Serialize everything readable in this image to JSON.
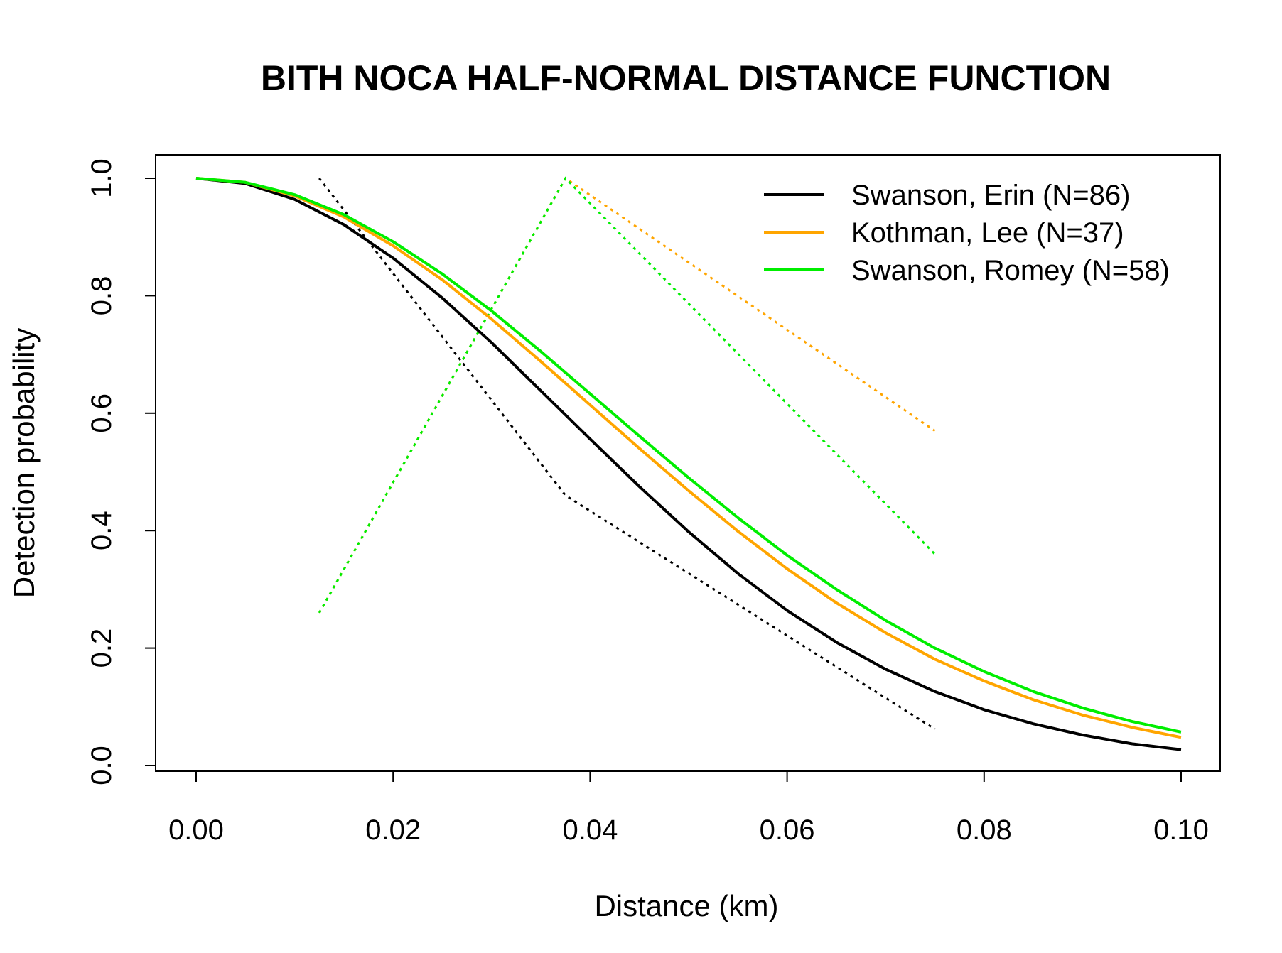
{
  "chart_data": {
    "type": "line",
    "title": "BITH NOCA HALF-NORMAL DISTANCE FUNCTION",
    "xlabel": "Distance (km)",
    "ylabel": "Detection probability",
    "xlim": [
      0,
      0.1
    ],
    "ylim": [
      0,
      1
    ],
    "xticks": [
      0,
      0.02,
      0.04,
      0.06,
      0.08,
      0.1
    ],
    "xtick_labels": [
      "0.00",
      "0.02",
      "0.04",
      "0.06",
      "0.08",
      "0.10"
    ],
    "yticks": [
      0,
      0.2,
      0.4,
      0.6,
      0.8,
      1.0
    ],
    "ytick_labels": [
      "0.0",
      "0.2",
      "0.4",
      "0.6",
      "0.8",
      "1.0"
    ],
    "legend_position": "top-right",
    "grid": false,
    "series": [
      {
        "name": "Swanson, Erin (N=86)",
        "color": "#000000",
        "style": "solid",
        "x": [
          0,
          0.005,
          0.01,
          0.015,
          0.02,
          0.025,
          0.03,
          0.035,
          0.04,
          0.045,
          0.05,
          0.055,
          0.06,
          0.065,
          0.07,
          0.075,
          0.08,
          0.085,
          0.09,
          0.095,
          0.1
        ],
        "y": [
          1.0,
          0.991,
          0.964,
          0.921,
          0.864,
          0.796,
          0.72,
          0.638,
          0.556,
          0.475,
          0.398,
          0.327,
          0.264,
          0.21,
          0.164,
          0.126,
          0.095,
          0.071,
          0.052,
          0.037,
          0.027
        ]
      },
      {
        "name": "Kothman, Lee (N=37)",
        "color": "#FFA500",
        "style": "solid",
        "x": [
          0,
          0.005,
          0.01,
          0.015,
          0.02,
          0.025,
          0.03,
          0.035,
          0.04,
          0.045,
          0.05,
          0.055,
          0.06,
          0.065,
          0.07,
          0.075,
          0.08,
          0.085,
          0.09,
          0.095,
          0.1
        ],
        "y": [
          1.0,
          0.993,
          0.97,
          0.934,
          0.885,
          0.827,
          0.76,
          0.688,
          0.614,
          0.54,
          0.468,
          0.399,
          0.335,
          0.277,
          0.226,
          0.181,
          0.144,
          0.112,
          0.086,
          0.065,
          0.048
        ]
      },
      {
        "name": "Swanson, Romey (N=58)",
        "color": "#00EE00",
        "style": "solid",
        "x": [
          0,
          0.005,
          0.01,
          0.015,
          0.02,
          0.025,
          0.03,
          0.035,
          0.04,
          0.045,
          0.05,
          0.055,
          0.06,
          0.065,
          0.07,
          0.075,
          0.08,
          0.085,
          0.09,
          0.095,
          0.1
        ],
        "y": [
          1.0,
          0.993,
          0.972,
          0.938,
          0.892,
          0.837,
          0.774,
          0.705,
          0.633,
          0.561,
          0.49,
          0.422,
          0.358,
          0.3,
          0.247,
          0.2,
          0.16,
          0.126,
          0.098,
          0.075,
          0.057
        ]
      }
    ],
    "dotted_series": [
      {
        "color": "#000000",
        "x": [
          0.0125,
          0.0375,
          0.075
        ],
        "y": [
          1.0,
          0.46,
          0.062
        ]
      },
      {
        "color": "#FFA500",
        "x": [
          0.0125,
          0.0375,
          0.075
        ],
        "y": [
          0.26,
          1.0,
          0.57
        ]
      },
      {
        "color": "#00EE00",
        "x": [
          0.0125,
          0.0375,
          0.075
        ],
        "y": [
          0.26,
          1.0,
          0.36
        ]
      }
    ]
  }
}
